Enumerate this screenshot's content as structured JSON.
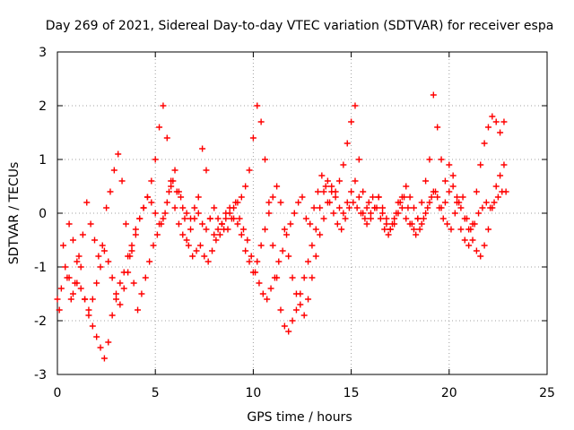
{
  "chart_data": {
    "type": "scatter",
    "title": "Day 269 of 2021, Sidereal Day-to-day VTEC variation (SDTVAR) for receiver espa",
    "xlabel": "GPS time / hours",
    "ylabel": "SDTVAR / TECUs",
    "xlim": [
      0,
      25
    ],
    "ylim": [
      -3,
      3
    ],
    "x_ticks": [
      "0",
      "5",
      "10",
      "15",
      "20",
      "25"
    ],
    "y_ticks": [
      "-3",
      "-2",
      "-1",
      "0",
      "1",
      "2",
      "3"
    ],
    "grid": true,
    "legend": "none",
    "marker": "plus",
    "color": "#ff0000",
    "series": [
      {
        "x": [
          0.0,
          0.2,
          0.4,
          0.6,
          0.8,
          1.0,
          1.2,
          1.4,
          1.6,
          1.8,
          2.0,
          2.2,
          2.4,
          2.6,
          2.8,
          3.0,
          3.2,
          3.4,
          3.6,
          3.8,
          4.0,
          4.2,
          4.4,
          4.6,
          4.8,
          5.0,
          5.2,
          5.4,
          5.6,
          5.8,
          6.0,
          6.2,
          6.4,
          6.6,
          6.8,
          7.0,
          7.2,
          7.4,
          7.6,
          7.8,
          8.0,
          8.2,
          8.4,
          8.6,
          8.8,
          9.0,
          9.2,
          9.4,
          9.6,
          9.8,
          10.0,
          10.2,
          10.4,
          10.6,
          10.8,
          11.0,
          11.2,
          11.4,
          11.6,
          11.8,
          12.0,
          12.2,
          12.4,
          12.6,
          12.8,
          13.0,
          13.2,
          13.4,
          13.6,
          13.8,
          14.0,
          14.2,
          14.4,
          14.6,
          14.8,
          15.0,
          15.2,
          15.4,
          15.6,
          15.8,
          16.0,
          16.2,
          16.4,
          16.6,
          16.8,
          17.0,
          17.2,
          17.4,
          17.6,
          17.8,
          18.0,
          18.2,
          18.4,
          18.6,
          18.8,
          19.0,
          19.2,
          19.4,
          19.6,
          19.8,
          20.0,
          20.2,
          20.4,
          20.6,
          20.8,
          21.0,
          21.2,
          21.4,
          21.6,
          21.8,
          22.0,
          22.2,
          22.4,
          22.6,
          22.8
        ],
        "y": [
          -1.6,
          -1.4,
          -1.0,
          -1.2,
          -1.5,
          -1.3,
          -1.0,
          -1.6,
          -1.9,
          -2.1,
          -2.3,
          -2.5,
          -2.7,
          -2.4,
          -1.9,
          -1.6,
          -1.3,
          -1.1,
          -0.8,
          -0.6,
          -0.3,
          -0.1,
          0.1,
          0.3,
          0.6,
          1.0,
          1.6,
          2.0,
          1.4,
          0.6,
          0.1,
          -0.2,
          -0.4,
          -0.5,
          -0.3,
          -0.1,
          0.3,
          1.2,
          0.8,
          -0.1,
          -0.4,
          -0.3,
          -0.2,
          -0.1,
          0.0,
          0.1,
          0.2,
          0.3,
          0.5,
          0.8,
          1.4,
          2.0,
          1.7,
          1.0,
          0.2,
          -0.6,
          -1.2,
          -1.8,
          -2.1,
          -2.2,
          -2.0,
          -1.8,
          -1.5,
          -1.2,
          -0.9,
          -0.6,
          -0.3,
          0.1,
          0.4,
          0.6,
          0.5,
          0.4,
          0.6,
          0.9,
          1.3,
          1.7,
          2.0,
          1.0,
          0.4,
          0.1,
          0.0,
          0.1,
          0.3,
          0.0,
          -0.2,
          -0.3,
          -0.1,
          0.2,
          0.1,
          -0.1,
          -0.2,
          -0.3,
          -0.1,
          0.2,
          0.6,
          1.0,
          2.2,
          1.6,
          1.0,
          0.6,
          0.9,
          0.7,
          0.2,
          -0.3,
          -0.5,
          -0.6,
          -0.2,
          0.4,
          0.9,
          1.3,
          1.6,
          1.8,
          1.7,
          1.5,
          1.7
        ]
      },
      {
        "x": [
          0.1,
          0.3,
          0.5,
          0.7,
          0.9,
          1.1,
          1.3,
          1.5,
          1.7,
          1.9,
          2.1,
          2.3,
          2.5,
          2.7,
          2.9,
          3.1,
          3.3,
          3.5,
          3.7,
          3.9,
          4.1,
          4.3,
          4.5,
          4.7,
          4.9,
          5.1,
          5.3,
          5.5,
          5.7,
          5.9,
          6.1,
          6.3,
          6.5,
          6.7,
          6.9,
          7.1,
          7.3,
          7.5,
          7.7,
          7.9,
          8.1,
          8.3,
          8.5,
          8.7,
          8.9,
          9.1,
          9.3,
          9.5,
          9.7,
          9.9,
          10.1,
          10.3,
          10.5,
          10.7,
          10.9,
          11.1,
          11.3,
          11.5,
          11.7,
          11.9,
          12.1,
          12.3,
          12.5,
          12.7,
          12.9,
          13.1,
          13.3,
          13.5,
          13.7,
          13.9,
          14.1,
          14.3,
          14.5,
          14.7,
          14.9,
          15.1,
          15.3,
          15.5,
          15.7,
          15.9,
          16.1,
          16.3,
          16.5,
          16.7,
          16.9,
          17.1,
          17.3,
          17.5,
          17.7,
          17.9,
          18.1,
          18.3,
          18.5,
          18.7,
          18.9,
          19.1,
          19.3,
          19.5,
          19.7,
          19.9,
          20.1,
          20.3,
          20.5,
          20.7,
          20.9,
          21.1,
          21.3,
          21.5,
          21.7,
          21.9,
          22.1,
          22.3,
          22.5,
          22.7,
          22.9
        ],
        "y": [
          -1.8,
          -0.6,
          -1.2,
          -1.6,
          -1.3,
          -0.8,
          -0.4,
          0.2,
          -0.2,
          -0.5,
          -0.8,
          -0.6,
          0.1,
          0.4,
          0.8,
          1.1,
          0.6,
          -0.2,
          -0.8,
          -1.3,
          -1.8,
          -1.5,
          -1.2,
          -0.9,
          -0.6,
          -0.4,
          -0.2,
          0.0,
          0.4,
          0.6,
          0.4,
          0.3,
          -0.1,
          -0.6,
          -0.8,
          -0.7,
          -0.6,
          -0.8,
          -0.9,
          -0.7,
          -0.5,
          -0.4,
          -0.3,
          -0.3,
          -0.1,
          0.2,
          -0.1,
          -0.3,
          -0.5,
          -0.8,
          -1.1,
          -1.3,
          -1.5,
          -1.6,
          -1.4,
          -1.2,
          -0.9,
          -0.7,
          -0.4,
          -0.2,
          0.0,
          0.2,
          0.3,
          -0.1,
          -0.2,
          0.1,
          0.4,
          0.7,
          0.5,
          0.2,
          0.0,
          -0.2,
          -0.3,
          -0.1,
          0.1,
          0.2,
          0.1,
          0.0,
          -0.1,
          0.2,
          0.3,
          0.1,
          -0.1,
          -0.3,
          -0.4,
          -0.2,
          0.0,
          0.2,
          0.3,
          0.1,
          -0.2,
          -0.4,
          -0.3,
          -0.1,
          0.1,
          0.3,
          0.4,
          0.1,
          -0.1,
          -0.2,
          -0.3,
          0.0,
          0.2,
          0.3,
          -0.1,
          -0.3,
          -0.2,
          0.0,
          0.1,
          0.2,
          0.1,
          0.2,
          0.3,
          0.4,
          0.4
        ]
      },
      {
        "x": [
          0.6,
          0.8,
          1.0,
          1.2,
          1.4,
          1.6,
          1.8,
          2.0,
          2.2,
          2.4,
          2.6,
          2.8,
          3.0,
          3.2,
          3.4,
          3.6,
          3.8,
          4.0,
          4.2,
          4.4,
          4.6,
          4.8,
          5.0,
          5.2,
          5.4,
          5.6,
          5.8,
          6.0,
          6.2,
          6.4,
          6.6,
          6.8,
          7.0,
          7.2,
          7.4,
          7.6,
          7.8,
          8.0,
          8.2,
          8.4,
          8.6,
          8.8,
          9.0,
          9.2,
          9.4,
          9.6,
          9.8,
          10.0,
          10.2,
          10.4,
          10.6,
          10.8,
          11.0,
          11.2,
          11.4,
          11.6,
          11.8,
          12.0,
          12.2,
          12.4,
          12.6,
          12.8,
          13.0,
          13.2,
          13.4,
          13.6,
          13.8,
          14.0,
          14.2,
          14.4,
          14.6,
          14.8,
          15.0,
          15.2,
          15.4,
          15.6,
          15.8,
          16.0,
          16.2,
          16.4,
          16.6,
          16.8,
          17.0,
          17.2,
          17.4,
          17.6,
          17.8,
          18.0,
          18.2,
          18.4,
          18.6,
          18.8,
          19.0,
          19.2,
          19.4,
          19.6,
          19.8,
          20.0,
          20.2,
          20.4,
          20.6,
          20.8,
          21.0,
          21.2,
          21.4,
          21.6,
          21.8,
          22.0,
          22.2,
          22.4,
          22.6,
          22.8
        ],
        "y": [
          -0.2,
          -0.5,
          -0.9,
          -1.4,
          -1.6,
          -1.8,
          -1.6,
          -1.3,
          -1.0,
          -0.7,
          -0.9,
          -1.2,
          -1.5,
          -1.7,
          -1.4,
          -1.1,
          -0.7,
          -0.4,
          -0.1,
          0.1,
          0.3,
          0.2,
          0.0,
          -0.2,
          -0.1,
          0.2,
          0.5,
          0.8,
          0.4,
          0.1,
          0.0,
          -0.1,
          0.1,
          0.0,
          -0.2,
          -0.3,
          -0.1,
          0.1,
          -0.1,
          -0.2,
          0.0,
          0.1,
          -0.1,
          -0.2,
          -0.4,
          -0.7,
          -0.9,
          -1.1,
          -0.9,
          -0.6,
          -0.3,
          0.0,
          0.3,
          0.5,
          0.2,
          -0.3,
          -0.8,
          -1.2,
          -1.5,
          -1.7,
          -1.9,
          -1.6,
          -1.2,
          -0.8,
          -0.4,
          -0.1,
          0.2,
          0.4,
          0.3,
          0.1,
          0.0,
          0.2,
          0.4,
          0.6,
          0.3,
          0.0,
          -0.2,
          -0.1,
          0.1,
          0.3,
          0.1,
          -0.1,
          -0.3,
          -0.2,
          0.0,
          0.3,
          0.5,
          0.3,
          0.1,
          -0.1,
          -0.2,
          0.0,
          0.2,
          0.4,
          0.3,
          0.1,
          0.2,
          0.4,
          0.5,
          0.3,
          0.1,
          -0.1,
          -0.3,
          -0.5,
          -0.7,
          -0.8,
          -0.6,
          -0.3,
          0.1,
          0.5,
          0.7,
          0.9
        ]
      }
    ]
  }
}
